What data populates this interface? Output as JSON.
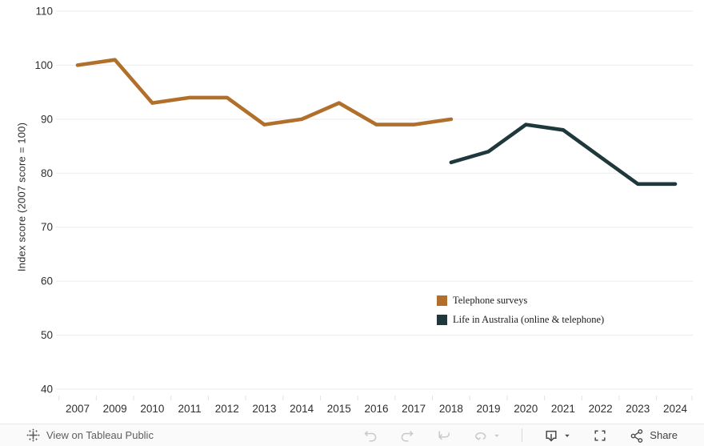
{
  "chart_data": {
    "type": "line",
    "title": "",
    "xlabel": "",
    "ylabel": "Index score (2007 score = 100)",
    "categories": [
      "2007",
      "2009",
      "2010",
      "2011",
      "2012",
      "2013",
      "2014",
      "2015",
      "2016",
      "2017",
      "2018",
      "2019",
      "2020",
      "2021",
      "2022",
      "2023",
      "2024"
    ],
    "y_ticks": [
      110,
      100,
      90,
      80,
      70,
      60,
      50,
      40
    ],
    "ylim": [
      40,
      110
    ],
    "grid": true,
    "legend_position": "inside-right",
    "series": [
      {
        "name": "Telephone surveys",
        "color": "#b0702c",
        "values": [
          100,
          101,
          93,
          94,
          94,
          89,
          90,
          93,
          89,
          89,
          90,
          null,
          null,
          null,
          null,
          null,
          null
        ]
      },
      {
        "name": "Life in Australia (online & telephone)",
        "color": "#1e383c",
        "values": [
          null,
          null,
          null,
          null,
          null,
          null,
          null,
          null,
          null,
          null,
          82,
          84,
          89,
          88,
          83,
          78,
          78
        ]
      }
    ]
  },
  "colors": {
    "grid": "#ececec",
    "axis_text": "#2f2f2f",
    "toolbar_bg": "#fafafa",
    "toolbar_icon": "#4a4a4a",
    "toolbar_icon_disabled": "#c9c9c9"
  },
  "toolbar": {
    "view_label": "View on Tableau Public",
    "share_label": "Share"
  }
}
